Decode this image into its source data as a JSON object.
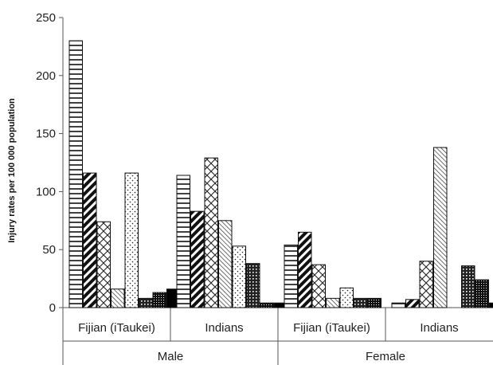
{
  "chart_data": {
    "type": "bar",
    "ylabel": "Injury rates per 100 000 population",
    "ylim": [
      0,
      250
    ],
    "yticks": [
      0,
      50,
      100,
      150,
      200,
      250
    ],
    "groups": [
      "Male",
      "Female"
    ],
    "categories": [
      "Fijian (iTaukei)",
      "Indians",
      "Fijian (iTaukei)",
      "Indians"
    ],
    "category_group": [
      "Male",
      "Male",
      "Female",
      "Female"
    ],
    "patterns": [
      "horizontal-lines",
      "thick-diagonal",
      "diamond-cross",
      "back-diagonal",
      "dots",
      "crosshatch",
      "dense-crosshatch",
      "solid"
    ],
    "values": [
      [
        230,
        116,
        74,
        16,
        116,
        8,
        13,
        16
      ],
      [
        114,
        83,
        129,
        75,
        53,
        38,
        4,
        4
      ],
      [
        54,
        65,
        37,
        8,
        17,
        8,
        8,
        0
      ],
      [
        4,
        7,
        40,
        138,
        0,
        36,
        24,
        4
      ]
    ],
    "legend": "none",
    "grid": false
  }
}
